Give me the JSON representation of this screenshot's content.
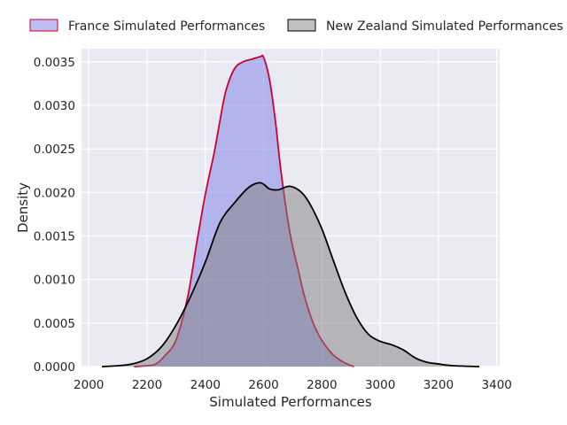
{
  "chart_data": {
    "type": "area",
    "title": "",
    "xlabel": "Simulated Performances",
    "ylabel": "Density",
    "xlim": [
      1975,
      3410
    ],
    "ylim": [
      0,
      0.00365
    ],
    "x_ticks": [
      2000,
      2200,
      2400,
      2600,
      2800,
      3000,
      3200,
      3400
    ],
    "x_tick_labels": [
      "2000",
      "2200",
      "2400",
      "2600",
      "2800",
      "3000",
      "3200",
      "3400"
    ],
    "y_ticks": [
      0,
      0.0005,
      0.001,
      0.0015,
      0.002,
      0.0025,
      0.003,
      0.0035
    ],
    "y_tick_labels": [
      "0.0000",
      "0.0005",
      "0.0010",
      "0.0015",
      "0.0020",
      "0.0025",
      "0.0030",
      "0.0035"
    ],
    "grid": true,
    "legend_position": "top-center",
    "series": [
      {
        "name": "France Simulated Performances",
        "fill_color": "#7b7be6",
        "line_color": "#cc0033",
        "points": [
          [
            2155,
            0
          ],
          [
            2200,
            1e-05
          ],
          [
            2230,
            3e-05
          ],
          [
            2260,
            0.00012
          ],
          [
            2300,
            0.00031
          ],
          [
            2340,
            0.00081
          ],
          [
            2370,
            0.00141
          ],
          [
            2400,
            0.00198
          ],
          [
            2430,
            0.00245
          ],
          [
            2450,
            0.00282
          ],
          [
            2470,
            0.00316
          ],
          [
            2500,
            0.00342
          ],
          [
            2530,
            0.0035
          ],
          [
            2560,
            0.00353
          ],
          [
            2590,
            0.00356
          ],
          [
            2600,
            0.00355
          ],
          [
            2620,
            0.0033
          ],
          [
            2640,
            0.00283
          ],
          [
            2660,
            0.00223
          ],
          [
            2690,
            0.00154
          ],
          [
            2720,
            0.00109
          ],
          [
            2740,
            0.00081
          ],
          [
            2770,
            0.0005
          ],
          [
            2800,
            0.0003
          ],
          [
            2840,
            0.00013
          ],
          [
            2880,
            4e-05
          ],
          [
            2910,
            0
          ]
        ]
      },
      {
        "name": "New Zealand Simulated Performances",
        "fill_color": "#808080",
        "line_color": "#000000",
        "points": [
          [
            2045,
            0
          ],
          [
            2100,
            1e-05
          ],
          [
            2150,
            3e-05
          ],
          [
            2200,
            9e-05
          ],
          [
            2250,
            0.00023
          ],
          [
            2300,
            0.00048
          ],
          [
            2350,
            0.00081
          ],
          [
            2400,
            0.0012
          ],
          [
            2450,
            0.00165
          ],
          [
            2500,
            0.00188
          ],
          [
            2550,
            0.00206
          ],
          [
            2590,
            0.00211
          ],
          [
            2620,
            0.00204
          ],
          [
            2650,
            0.00203
          ],
          [
            2690,
            0.00207
          ],
          [
            2730,
            0.002
          ],
          [
            2760,
            0.00186
          ],
          [
            2800,
            0.00158
          ],
          [
            2840,
            0.00121
          ],
          [
            2880,
            0.00085
          ],
          [
            2920,
            0.00056
          ],
          [
            2960,
            0.00037
          ],
          [
            3000,
            0.00029
          ],
          [
            3040,
            0.00025
          ],
          [
            3080,
            0.00019
          ],
          [
            3120,
            0.0001
          ],
          [
            3160,
            5e-05
          ],
          [
            3200,
            3e-05
          ],
          [
            3250,
            1e-05
          ],
          [
            3340,
            0
          ]
        ]
      }
    ]
  }
}
